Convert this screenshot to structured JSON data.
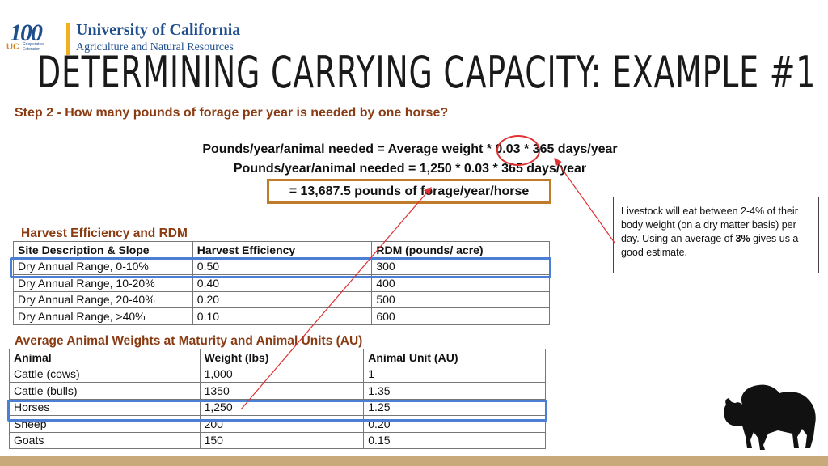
{
  "logo": {
    "centennial": "100",
    "uc_mark": "UC",
    "extension": "Cooperative Extension",
    "university": "University of California",
    "division": "Agriculture and Natural Resources"
  },
  "title": "DETERMINING CARRYING CAPACITY: EXAMPLE #1",
  "step": "Step 2 - How many pounds of forage per year is needed by one horse?",
  "formula": {
    "line1": "Pounds/year/animal needed = Average weight * 0.03 * 365 days/year",
    "line2": "Pounds/year/animal needed = 1,250 * 0.03 * 365 days/year",
    "result": "= 13,687.5 pounds of forage/year/horse"
  },
  "note": {
    "text_before": "Livestock will eat between 2-4% of their body weight (on a dry matter basis) per day. Using an average of ",
    "highlight": "3%",
    "text_after": " gives us a good estimate."
  },
  "harvest": {
    "title": "Harvest Efficiency and RDM",
    "headers": [
      "Site Description & Slope",
      "Harvest Efficiency",
      "RDM (pounds/ acre)"
    ],
    "rows": [
      [
        "Dry Annual Range, 0-10%",
        "0.50",
        "300"
      ],
      [
        "Dry Annual Range, 10-20%",
        "0.40",
        "400"
      ],
      [
        "Dry Annual Range, 20-40%",
        "0.20",
        "500"
      ],
      [
        "Dry Annual Range, >40%",
        "0.10",
        "600"
      ]
    ]
  },
  "animals": {
    "title": "Average Animal Weights at Maturity and Animal Units (AU)",
    "headers": [
      "Animal",
      "Weight (lbs)",
      "Animal Unit (AU)"
    ],
    "rows": [
      [
        "Cattle (cows)",
        "1,000",
        "1"
      ],
      [
        "Cattle (bulls)",
        "1350",
        "1.35"
      ],
      [
        "Horses",
        "1,250",
        "1.25"
      ],
      [
        "Sheep",
        "200",
        "0.20"
      ],
      [
        "Goats",
        "150",
        "0.15"
      ]
    ]
  },
  "colors": {
    "accent_brown": "#8a3b12",
    "highlight_blue": "#4a7fd4",
    "annotation_red": "#e03030",
    "result_border": "#c07b2a",
    "footer": "#c8aa7a"
  }
}
